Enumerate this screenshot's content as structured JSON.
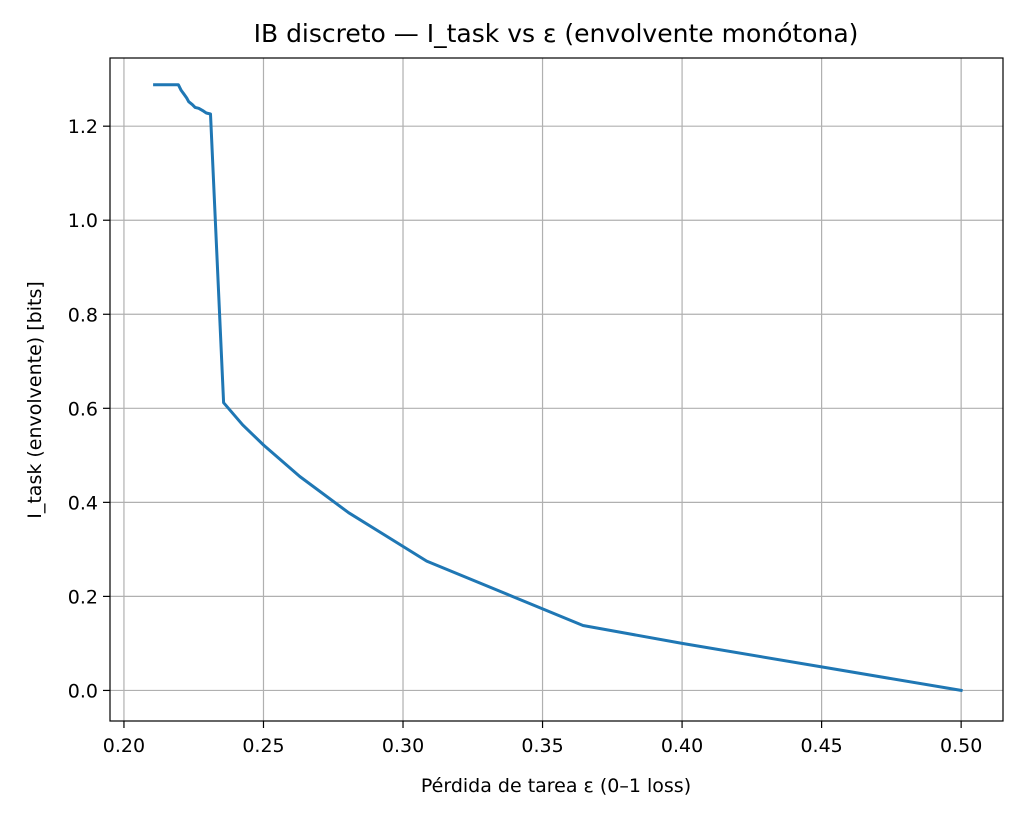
{
  "chart_data": {
    "type": "line",
    "title": "IB discreto — I_task vs ε (envolvente monótona)",
    "xlabel": "Pérdida de tarea ε (0–1 loss)",
    "ylabel": "I_task (envolvente)  [bits]",
    "xlim": [
      0.195,
      0.515
    ],
    "ylim": [
      -0.065,
      1.345
    ],
    "xticks": [
      0.2,
      0.25,
      0.3,
      0.35,
      0.4,
      0.45,
      0.5
    ],
    "yticks": [
      0.0,
      0.2,
      0.4,
      0.6,
      0.8,
      1.0,
      1.2
    ],
    "xtick_labels": [
      "0.20",
      "0.25",
      "0.30",
      "0.35",
      "0.40",
      "0.45",
      "0.50"
    ],
    "ytick_labels": [
      "0.0",
      "0.2",
      "0.4",
      "0.6",
      "0.8",
      "1.0",
      "1.2"
    ],
    "grid": true,
    "colors": {
      "series": "#1f77b4",
      "grid": "#b0b0b0",
      "axes": "#000000"
    },
    "series": [
      {
        "x": [
          0.211,
          0.2195,
          0.2205,
          0.2215,
          0.2225,
          0.2232,
          0.2245,
          0.2255,
          0.2268,
          0.2285,
          0.2295,
          0.231,
          0.2357,
          0.2425,
          0.25,
          0.263,
          0.2805,
          0.3085,
          0.3645,
          0.4,
          0.45,
          0.5
        ],
        "y": [
          1.288,
          1.288,
          1.276,
          1.268,
          1.26,
          1.252,
          1.246,
          1.24,
          1.238,
          1.232,
          1.228,
          1.226,
          0.612,
          0.565,
          0.522,
          0.455,
          0.378,
          0.275,
          0.138,
          0.1,
          0.05,
          0.0
        ]
      }
    ]
  }
}
